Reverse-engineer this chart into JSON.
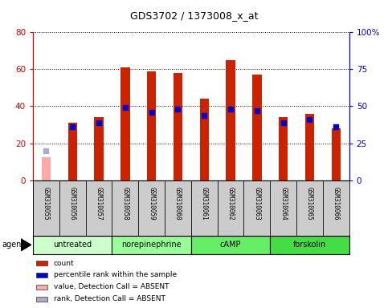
{
  "title": "GDS3702 / 1373008_x_at",
  "samples": [
    "GSM310055",
    "GSM310056",
    "GSM310057",
    "GSM310058",
    "GSM310059",
    "GSM310060",
    "GSM310061",
    "GSM310062",
    "GSM310063",
    "GSM310064",
    "GSM310065",
    "GSM310066"
  ],
  "count_values": [
    null,
    31,
    34,
    61,
    59,
    58,
    44,
    65,
    57,
    34,
    36,
    28
  ],
  "count_absent": [
    12.5,
    null,
    null,
    null,
    null,
    null,
    null,
    null,
    null,
    null,
    null,
    null
  ],
  "percentile_values": [
    null,
    36,
    39,
    49,
    46,
    48,
    44,
    48,
    47,
    39,
    41,
    36
  ],
  "percentile_absent": [
    20,
    null,
    null,
    null,
    null,
    null,
    null,
    null,
    null,
    null,
    null,
    null
  ],
  "left_ylim": [
    0,
    80
  ],
  "right_ylim": [
    0,
    100
  ],
  "left_yticks": [
    0,
    20,
    40,
    60,
    80
  ],
  "left_yticklabels": [
    "0",
    "20",
    "40",
    "60",
    "80"
  ],
  "right_yticks": [
    0,
    25,
    50,
    75,
    100
  ],
  "right_yticklabels": [
    "0",
    "25",
    "50",
    "75",
    "100%"
  ],
  "left_axis_color": "#cc0000",
  "right_axis_color": "#0000cc",
  "bar_color": "#cc2200",
  "bar_absent_color": "#ffaaaa",
  "dot_color": "#0000cc",
  "dot_absent_color": "#aaaacc",
  "groups": [
    {
      "label": "untreated",
      "start": 0,
      "end": 3,
      "color": "#ccffcc"
    },
    {
      "label": "norepinephrine",
      "start": 3,
      "end": 6,
      "color": "#99ff99"
    },
    {
      "label": "cAMP",
      "start": 6,
      "end": 9,
      "color": "#66ee66"
    },
    {
      "label": "forskolin",
      "start": 9,
      "end": 12,
      "color": "#44dd44"
    }
  ],
  "agent_label": "agent",
  "legend_items": [
    {
      "color": "#cc2200",
      "label": "count"
    },
    {
      "color": "#0000cc",
      "label": "percentile rank within the sample"
    },
    {
      "color": "#ffaaaa",
      "label": "value, Detection Call = ABSENT"
    },
    {
      "color": "#aaaacc",
      "label": "rank, Detection Call = ABSENT"
    }
  ],
  "bg_color": "#ffffff",
  "plot_bg_color": "#ffffff",
  "grid_color": "#000000",
  "bar_width": 0.35,
  "dot_size": 4,
  "tick_area_color": "#cccccc",
  "group_border_color": "#000000"
}
